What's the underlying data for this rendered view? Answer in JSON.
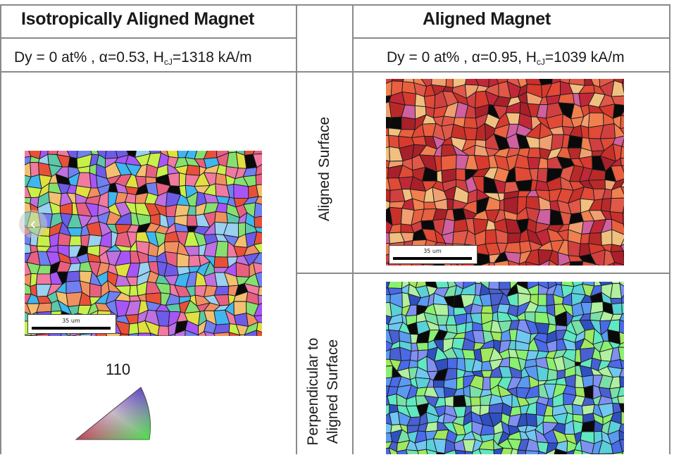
{
  "header": {
    "left_title": "Isotropically Aligned Magnet",
    "right_title": "Aligned Magnet"
  },
  "conditions": {
    "left_text": "Dy = 0 at% , α=0.53, H",
    "left_sub": "cJ",
    "left_tail": "=1318 kA/m",
    "right_text": "Dy = 0 at% ,  α=0.95, H",
    "right_sub": "cJ",
    "right_tail": "=1039 kA/m"
  },
  "row_labels": {
    "aligned_surface": "Aligned Surface",
    "perp_line1": "Perpendicular to",
    "perp_line2": "Aligned Surface"
  },
  "scale_bars": {
    "left": "35 um",
    "right_top": "35 um"
  },
  "ipf": {
    "label_top": "110"
  },
  "palettes": {
    "isotropic": [
      "#e8503a",
      "#f07aa0",
      "#a855f7",
      "#6d5ce8",
      "#3fb6f0",
      "#86e070",
      "#c8f04a",
      "#f2c070",
      "#e0e040",
      "#9ad0f0",
      "#c070e0",
      "#f09060",
      "#5cc8a8",
      "#7080f0",
      "#e86080"
    ],
    "aligned": [
      "#d83a2e",
      "#c8302a",
      "#e04a36",
      "#b82a28",
      "#e86040",
      "#f08050",
      "#a8202a",
      "#d04040",
      "#f0a070",
      "#c02838",
      "#e05848",
      "#f0c080",
      "#d060a0"
    ],
    "perpendicular": [
      "#4a6ae8",
      "#5a9af0",
      "#7ae0a8",
      "#8af070",
      "#5ad0d8",
      "#a0e860",
      "#4860d0",
      "#70c8f0",
      "#b0f0a0",
      "#60e8c0",
      "#8090f0",
      "#3050c0"
    ]
  }
}
